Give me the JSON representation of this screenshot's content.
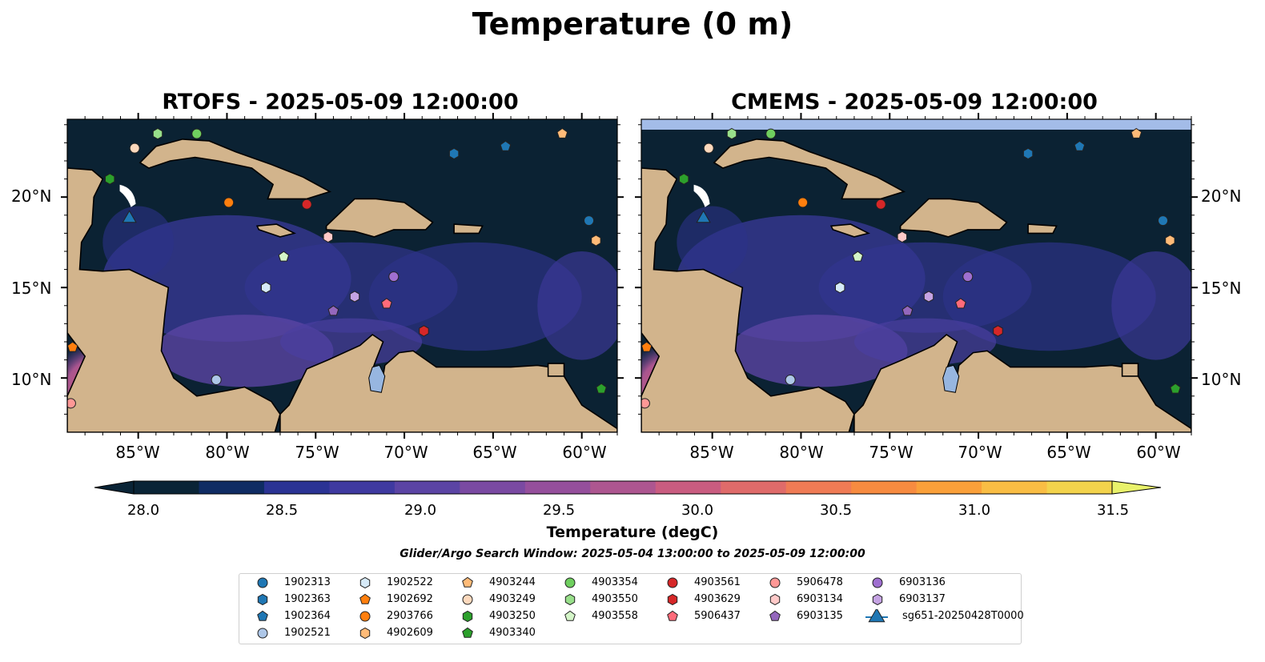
{
  "title": "Temperature (0 m)",
  "panels": [
    {
      "title": "RTOFS - 2025-05-09 12:00:00"
    },
    {
      "title": "CMEMS - 2025-05-09 12:00:00"
    }
  ],
  "lat_ticks": [
    "20°N",
    "15°N",
    "10°N"
  ],
  "lon_ticks": [
    "85°W",
    "80°W",
    "75°W",
    "70°W",
    "65°W",
    "60°W"
  ],
  "colorbar": {
    "label": "Temperature (degC)",
    "ticks": [
      "28.0",
      "28.5",
      "29.0",
      "29.5",
      "30.0",
      "30.5",
      "31.0",
      "31.5"
    ],
    "min": 27.75,
    "max": 31.5,
    "step": 0.25,
    "colors": [
      "#0a2436",
      "#0f2c63",
      "#2b3394",
      "#3f3aa0",
      "#5b44a4",
      "#7a4aa2",
      "#954f9c",
      "#ad5690",
      "#c95c80",
      "#df6b6a",
      "#ef7b55",
      "#f78b40",
      "#faa03a",
      "#f9bd44",
      "#f3d34c",
      "#e9f26b"
    ]
  },
  "search_window": "Glider/Argo Search Window: 2025-05-04 13:00:00 to 2025-05-09 12:00:00",
  "legend": [
    {
      "label": "1902313",
      "marker": "circle",
      "color": "#1f77b4"
    },
    {
      "label": "1902363",
      "marker": "hexagon",
      "color": "#1f77b4"
    },
    {
      "label": "1902364",
      "marker": "pentagon",
      "color": "#1f77b4"
    },
    {
      "label": "1902521",
      "marker": "circle",
      "color": "#aec7e8"
    },
    {
      "label": "1902522",
      "marker": "hexagon",
      "color": "#d6eaf8"
    },
    {
      "label": "1902692",
      "marker": "pentagon",
      "color": "#ff7f0e"
    },
    {
      "label": "2903766",
      "marker": "circle",
      "color": "#ff7f0e"
    },
    {
      "label": "4902609",
      "marker": "hexagon",
      "color": "#ffbb78"
    },
    {
      "label": "4903244",
      "marker": "pentagon",
      "color": "#ffbb78"
    },
    {
      "label": "4903249",
      "marker": "circle",
      "color": "#fdd9bd"
    },
    {
      "label": "4903250",
      "marker": "hexagon",
      "color": "#2ca02c"
    },
    {
      "label": "4903340",
      "marker": "pentagon",
      "color": "#2ca02c"
    },
    {
      "label": "4903354",
      "marker": "circle",
      "color": "#6fcf5f"
    },
    {
      "label": "4903550",
      "marker": "hexagon",
      "color": "#98df8a"
    },
    {
      "label": "4903558",
      "marker": "pentagon",
      "color": "#d4f5c8"
    },
    {
      "label": "4903561",
      "marker": "circle",
      "color": "#d62728"
    },
    {
      "label": "4903629",
      "marker": "hexagon",
      "color": "#d62728"
    },
    {
      "label": "5906437",
      "marker": "pentagon",
      "color": "#ff6b7a"
    },
    {
      "label": "5906478",
      "marker": "circle",
      "color": "#ff9896"
    },
    {
      "label": "6903134",
      "marker": "hexagon",
      "color": "#ffc9c8"
    },
    {
      "label": "6903135",
      "marker": "pentagon",
      "color": "#9467bd"
    },
    {
      "label": "6903136",
      "marker": "circle",
      "color": "#9f6fd0"
    },
    {
      "label": "6903137",
      "marker": "hexagon",
      "color": "#c5a3e3"
    },
    {
      "label": "sg651-20250428T0000",
      "marker": "triangle",
      "color": "#1f77b4"
    }
  ],
  "map_markers": [
    {
      "float": "1902313",
      "lon": -59.6,
      "lat": 18.7
    },
    {
      "float": "1902363",
      "lon": -67.2,
      "lat": 22.4
    },
    {
      "float": "1902364",
      "lon": -64.3,
      "lat": 22.8
    },
    {
      "float": "1902521",
      "lon": -80.6,
      "lat": 9.9
    },
    {
      "float": "1902522",
      "lon": -77.8,
      "lat": 15.0
    },
    {
      "float": "1902692",
      "lon": -88.7,
      "lat": 11.7
    },
    {
      "float": "2903766",
      "lon": -79.9,
      "lat": 19.7
    },
    {
      "float": "4902609",
      "lon": -59.2,
      "lat": 17.6
    },
    {
      "float": "4903244",
      "lon": -61.1,
      "lat": 23.5
    },
    {
      "float": "4903249",
      "lon": -85.2,
      "lat": 22.7
    },
    {
      "float": "4903250",
      "lon": -86.6,
      "lat": 21.0
    },
    {
      "float": "4903340",
      "lon": -58.9,
      "lat": 9.4
    },
    {
      "float": "4903354",
      "lon": -81.7,
      "lat": 23.5
    },
    {
      "float": "4903550",
      "lon": -83.9,
      "lat": 23.5
    },
    {
      "float": "4903558",
      "lon": -76.8,
      "lat": 16.7
    },
    {
      "float": "4903561",
      "lon": -75.5,
      "lat": 19.6
    },
    {
      "float": "4903629",
      "lon": -68.9,
      "lat": 12.6
    },
    {
      "float": "5906437",
      "lon": -71.0,
      "lat": 14.1
    },
    {
      "float": "5906478",
      "lon": -88.8,
      "lat": 8.6
    },
    {
      "float": "6903134",
      "lon": -74.3,
      "lat": 17.8
    },
    {
      "float": "6903135",
      "lon": -74.0,
      "lat": 13.7
    },
    {
      "float": "6903136",
      "lon": -70.6,
      "lat": 15.6
    },
    {
      "float": "6903137",
      "lon": -72.8,
      "lat": 14.5
    },
    {
      "float": "sg651-20250428T0000",
      "lon": -85.5,
      "lat": 18.9
    }
  ],
  "extent": {
    "lon": [
      -89,
      -58
    ],
    "lat": [
      7,
      24.3
    ]
  }
}
